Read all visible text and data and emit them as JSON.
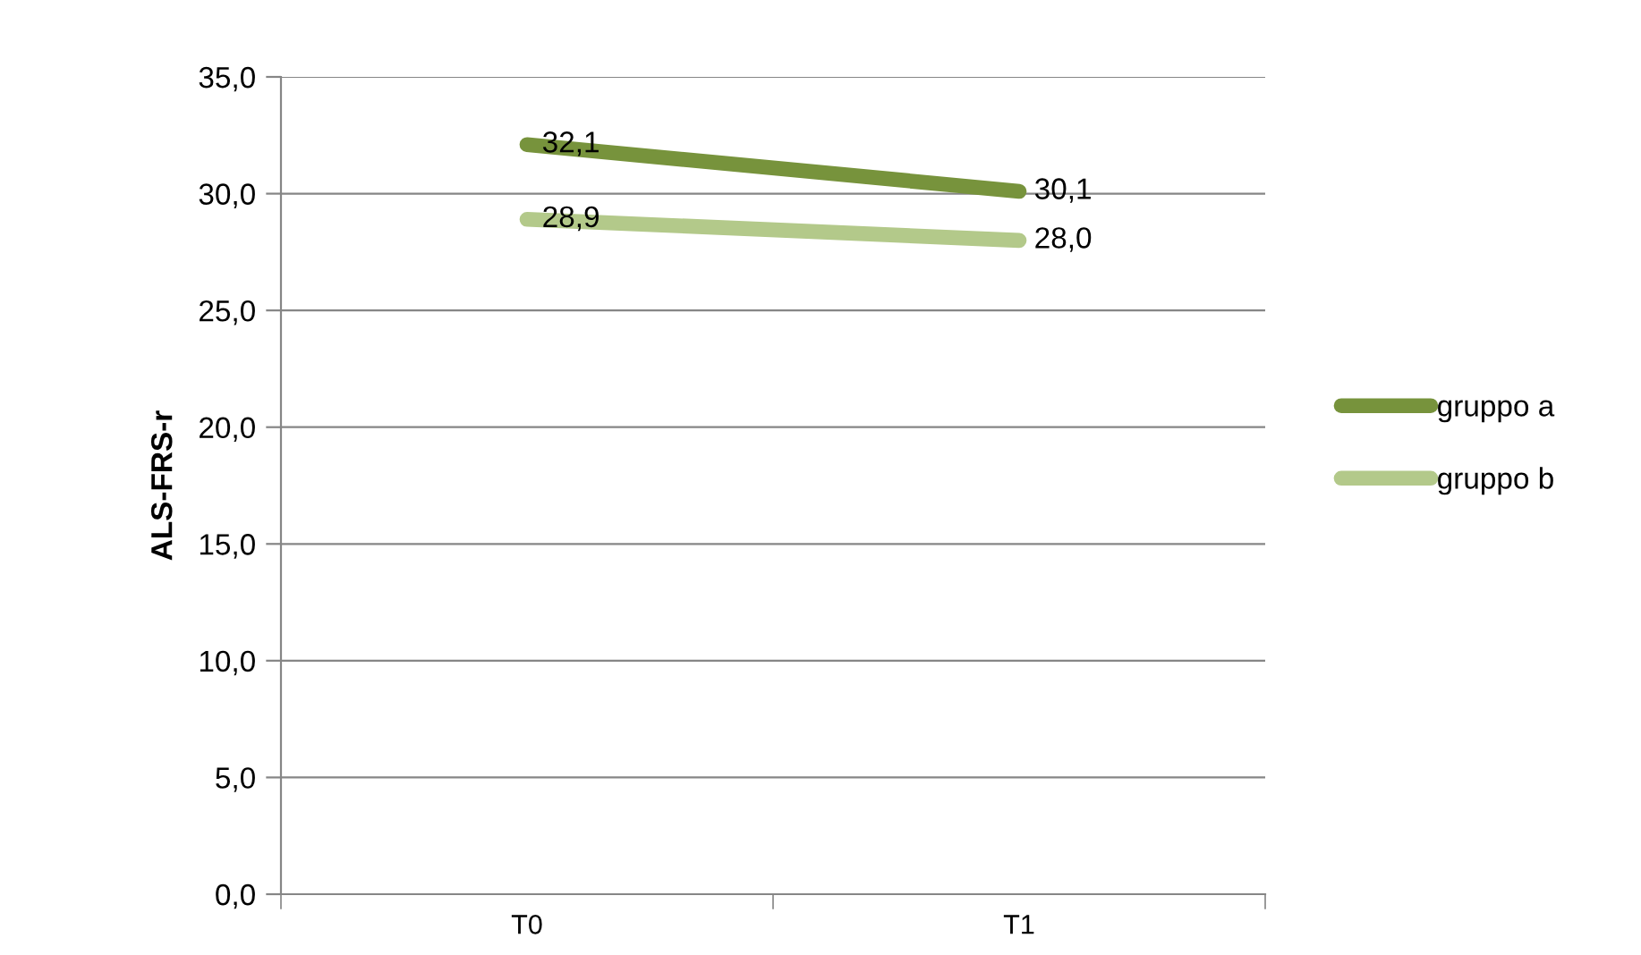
{
  "chart_data": {
    "type": "line",
    "ylabel": "ALS-FRS-r",
    "categories": [
      "T0",
      "T1"
    ],
    "series": [
      {
        "name": "gruppo a",
        "color": "#77933c",
        "values": [
          32.1,
          30.1
        ],
        "value_labels": [
          "32,1",
          "30,1"
        ]
      },
      {
        "name": "gruppo b",
        "color": "#b3c98a",
        "values": [
          28.9,
          28.0
        ],
        "value_labels": [
          "28,9",
          "28,0"
        ]
      }
    ],
    "ylim": [
      0,
      35
    ],
    "yticks": [
      {
        "value": 0,
        "label": "0,0"
      },
      {
        "value": 5,
        "label": "5,0"
      },
      {
        "value": 10,
        "label": "10,0"
      },
      {
        "value": 15,
        "label": "15,0"
      },
      {
        "value": 20,
        "label": "20,0"
      },
      {
        "value": 25,
        "label": "25,0"
      },
      {
        "value": 30,
        "label": "30,0"
      },
      {
        "value": 35,
        "label": "35,0"
      }
    ],
    "grid": "y",
    "legend": "right",
    "line_style": "solid"
  }
}
